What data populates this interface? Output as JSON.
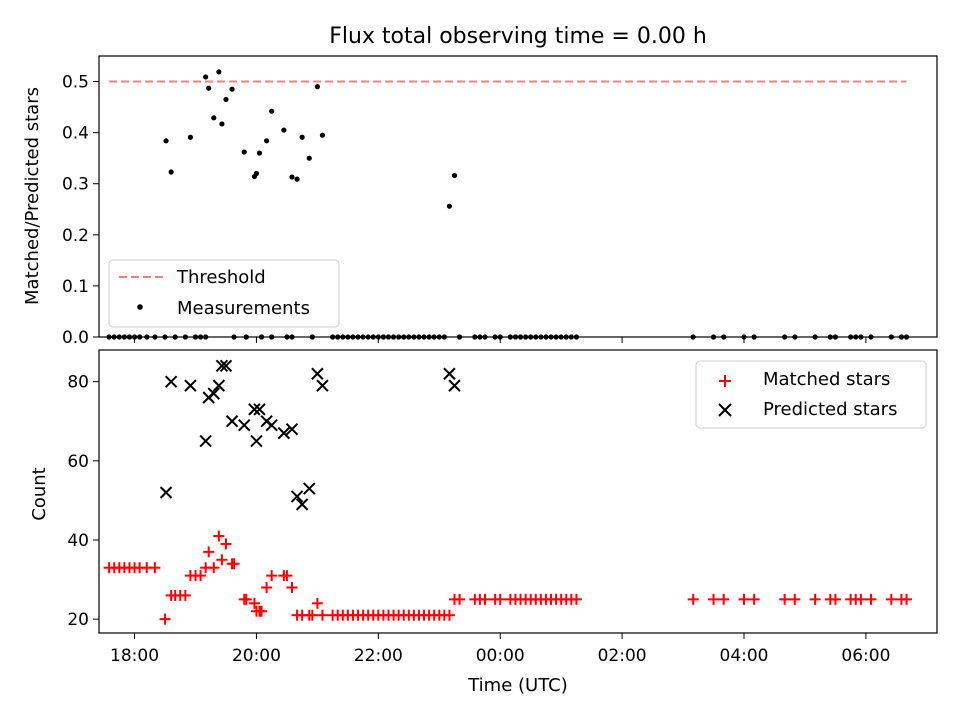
{
  "chart_data": [
    {
      "type": "scatter",
      "title": "Flux total observing time = 0.00 h",
      "xlabel": "",
      "ylabel": "Matched/Predicted stars",
      "ylim": [
        0,
        0.55
      ],
      "xlim": [
        "17:25",
        "31:10"
      ],
      "yticks": [
        "0.0",
        "0.1",
        "0.2",
        "0.3",
        "0.4",
        "0.5"
      ],
      "threshold": 0.5,
      "threshold_color": "#f08080",
      "legend_position": "lower left",
      "legend": {
        "threshold": "Threshold",
        "measurements": "Measurements"
      },
      "series": [
        {
          "name": "Measurements",
          "color": "#000000",
          "x": [
            "18:31",
            "18:36",
            "18:55",
            "19:10",
            "19:13",
            "19:18",
            "19:23",
            "19:26",
            "19:30",
            "19:36",
            "19:48",
            "19:58",
            "20:00",
            "20:03",
            "20:10",
            "20:15",
            "20:27",
            "20:35",
            "20:40",
            "20:45",
            "20:52",
            "21:00",
            "21:05",
            "23:10",
            "23:15"
          ],
          "y": [
            0.384,
            0.323,
            0.391,
            0.509,
            0.487,
            0.429,
            0.519,
            0.417,
            0.465,
            0.485,
            0.362,
            0.314,
            0.32,
            0.36,
            0.384,
            0.442,
            0.405,
            0.313,
            0.309,
            0.391,
            0.35,
            0.49,
            0.395,
            0.256,
            0.316
          ]
        },
        {
          "name": "Zero measurements",
          "color": "#000000",
          "x": [
            "17:35",
            "17:40",
            "17:45",
            "17:50",
            "17:55",
            "18:00",
            "18:05",
            "18:12",
            "18:20",
            "18:30",
            "18:40",
            "18:50",
            "19:00",
            "19:05",
            "19:10",
            "19:38",
            "19:50",
            "20:05",
            "20:15",
            "20:30",
            "20:35",
            "20:55",
            "21:15",
            "21:20",
            "21:25",
            "21:30",
            "21:35",
            "21:40",
            "21:45",
            "21:50",
            "21:55",
            "22:00",
            "22:05",
            "22:10",
            "22:15",
            "22:20",
            "22:25",
            "22:30",
            "22:35",
            "22:40",
            "22:45",
            "22:50",
            "22:55",
            "23:00",
            "23:05",
            "23:20",
            "23:35",
            "23:40",
            "23:45",
            "23:55",
            "24:00",
            "24:10",
            "24:15",
            "24:20",
            "24:25",
            "24:30",
            "24:35",
            "24:40",
            "24:45",
            "24:50",
            "24:55",
            "25:00",
            "25:05",
            "25:10",
            "25:15",
            "27:10",
            "27:30",
            "27:40",
            "28:00",
            "28:10",
            "28:40",
            "28:50",
            "29:10",
            "29:25",
            "29:30",
            "29:45",
            "29:50",
            "29:55",
            "30:05",
            "30:25",
            "30:35",
            "30:40"
          ],
          "y_value": 0
        }
      ]
    },
    {
      "type": "scatter",
      "title": "",
      "xlabel": "Time (UTC)",
      "ylabel": "Count",
      "ylim": [
        16.5,
        88
      ],
      "yticks": [
        "20",
        "40",
        "60",
        "80"
      ],
      "xticks": [
        "18:00",
        "20:00",
        "22:00",
        "00:00",
        "02:00",
        "04:00",
        "06:00"
      ],
      "legend_position": "upper right",
      "legend": {
        "matched": "Matched stars",
        "predicted": "Predicted stars"
      },
      "series": [
        {
          "name": "Matched stars",
          "color": "#ff0000",
          "marker": "plus",
          "x": [
            "17:35",
            "17:40",
            "17:45",
            "17:50",
            "17:55",
            "18:00",
            "18:05",
            "18:12",
            "18:20",
            "18:30",
            "18:36",
            "18:40",
            "18:45",
            "18:50",
            "18:55",
            "19:00",
            "19:05",
            "19:10",
            "19:13",
            "19:18",
            "19:23",
            "19:26",
            "19:30",
            "19:36",
            "19:38",
            "19:48",
            "19:50",
            "19:58",
            "20:00",
            "20:03",
            "20:05",
            "20:10",
            "20:15",
            "20:27",
            "20:30",
            "20:35",
            "20:40",
            "20:45",
            "20:52",
            "20:55",
            "21:00",
            "21:05",
            "21:15",
            "21:20",
            "21:25",
            "21:30",
            "21:35",
            "21:40",
            "21:45",
            "21:50",
            "21:55",
            "22:00",
            "22:05",
            "22:10",
            "22:15",
            "22:20",
            "22:25",
            "22:30",
            "22:35",
            "22:40",
            "22:45",
            "22:50",
            "22:55",
            "23:00",
            "23:05",
            "23:10",
            "23:15",
            "23:20",
            "23:35",
            "23:40",
            "23:45",
            "23:55",
            "24:00",
            "24:10",
            "24:15",
            "24:20",
            "24:25",
            "24:30",
            "24:35",
            "24:40",
            "24:45",
            "24:50",
            "24:55",
            "25:00",
            "25:05",
            "25:10",
            "25:15",
            "27:10",
            "27:30",
            "27:40",
            "28:00",
            "28:10",
            "28:40",
            "28:50",
            "29:10",
            "29:25",
            "29:30",
            "29:45",
            "29:50",
            "29:55",
            "30:05",
            "30:25",
            "30:35",
            "30:40"
          ],
          "y": [
            33,
            33,
            33,
            33,
            33,
            33,
            33,
            33,
            33,
            20,
            26,
            26,
            26,
            26,
            31,
            31,
            31,
            33,
            37,
            33,
            41,
            35,
            39,
            34,
            34,
            25,
            25,
            24,
            22,
            22,
            22,
            28,
            31,
            31,
            31,
            28,
            21,
            21,
            21,
            21,
            24,
            21,
            21,
            21,
            21,
            21,
            21,
            21,
            21,
            21,
            21,
            21,
            21,
            21,
            21,
            21,
            21,
            21,
            21,
            21,
            21,
            21,
            21,
            21,
            21,
            21,
            25,
            25,
            25,
            25,
            25,
            25,
            25,
            25,
            25,
            25,
            25,
            25,
            25,
            25,
            25,
            25,
            25,
            25,
            25,
            25,
            25,
            25,
            25,
            25,
            25,
            25,
            25,
            25,
            25,
            25,
            25,
            25,
            25,
            25,
            25,
            25,
            25,
            25
          ]
        },
        {
          "name": "Predicted stars",
          "color": "#000000",
          "marker": "x",
          "x": [
            "18:31",
            "18:36",
            "18:55",
            "19:10",
            "19:13",
            "19:18",
            "19:23",
            "19:26",
            "19:30",
            "19:36",
            "19:48",
            "19:58",
            "20:00",
            "20:03",
            "20:10",
            "20:15",
            "20:27",
            "20:35",
            "20:40",
            "20:45",
            "20:52",
            "21:00",
            "21:05",
            "23:10",
            "23:15"
          ],
          "y": [
            52,
            80,
            79,
            65,
            76,
            77,
            79,
            84,
            84,
            70,
            69,
            73,
            65,
            73,
            70,
            69,
            67,
            68,
            51,
            49,
            53,
            82,
            79,
            82,
            79
          ]
        }
      ]
    }
  ]
}
